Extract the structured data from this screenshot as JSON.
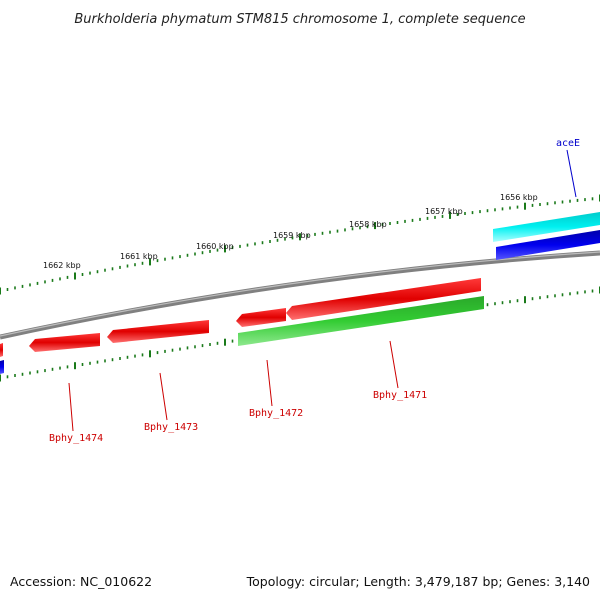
{
  "title": "Burkholderia phymatum STM815 chromosome 1, complete sequence",
  "footer": {
    "accession": "Accession: NC_010622",
    "summary": "Topology: circular; Length: 3,479,187 bp; Genes: 3,140"
  },
  "ruler_ticks": [
    "1656 kbp",
    "1657 kbp",
    "1658 kbp",
    "1659 kbp",
    "1660 kbp",
    "1661 kbp",
    "1662 kbp"
  ],
  "genes": [
    {
      "label": "aceE",
      "strand": "forward",
      "color": "#00e5e5"
    },
    {
      "label": "Bphy_1471",
      "strand": "reverse",
      "color": "#33cc33"
    },
    {
      "label": "Bphy_1472",
      "strand": "forward",
      "color": "#ff0000"
    },
    {
      "label": "Bphy_1473",
      "strand": "forward",
      "color": "#ff0000"
    },
    {
      "label": "Bphy_1474",
      "strand": "forward",
      "color": "#ff0000"
    }
  ],
  "colors": {
    "backbone": "#808080",
    "tick": "#1a7a1a",
    "forward_cds": "#ff0000",
    "reverse_cds": "#33cc33",
    "cyan_gene": "#00e5e5",
    "blue_track": "#0000dd",
    "label_red": "#cc0000",
    "label_blue": "#0000cc"
  }
}
